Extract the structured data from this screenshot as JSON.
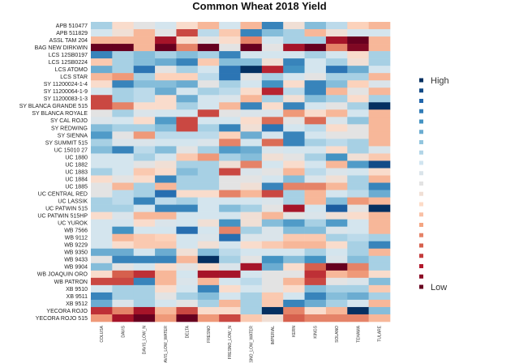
{
  "chart_data": {
    "type": "heatmap",
    "title": "Common Wheat 2018 Yield",
    "value_scale": "relative yield level, -3 = Low (dark red) to 3 = High (dark blue)",
    "columns": [
      "COLUSA",
      "DAVIS",
      "DAVIS_LOW_N",
      "DAVIS_LOW_WATER",
      "DELTA",
      "FRESNO",
      "FRESNO_LOW_N",
      "FRESNO_LOW_WATER",
      "IMPERIAL",
      "KERN",
      "KINGS",
      "SOLANO",
      "TEHAMA",
      "TULARE"
    ],
    "rows": [
      "APB 510477",
      "APB 511829",
      "ASSL TAM 204",
      "BAG NEW DIRKWIN",
      "LCS 12SB0197",
      "LCS 12SB0224",
      "LCS ATOMO",
      "LCS STAR",
      "SY 11200024-1-4",
      "SY 11200064-1-9",
      "SY 11200083-1-3",
      "SY BLANCA GRANDE 515",
      "SY BLANCA ROYALE",
      "SY CAL ROJO",
      "SY REDWING",
      "SY SIENNA",
      "SY SUMMIT 515",
      "UC 15010 27",
      "UC 1880",
      "UC 1882",
      "UC 1883",
      "UC 1884",
      "UC 1885",
      "UC CENTRAL RED",
      "UC LASSIK",
      "UC PATWIN 515",
      "UC PATWIN 515HP",
      "UC YUROK",
      "WB 7566",
      "WB 9112",
      "WB 9229",
      "WB 9350",
      "WB 9433",
      "WB 9904",
      "WB JOAQUIN ORO",
      "WB PATRON",
      "XB 9510",
      "XB 9511",
      "XB 9512",
      "YECORA ROJO",
      "YECORA ROJO 515"
    ],
    "values": [
      [
        1,
        -0.5,
        0,
        0.5,
        -0.5,
        -1,
        0.5,
        -1,
        2,
        -0.3,
        1.3,
        0.8,
        -0.7,
        -1
      ],
      [
        0.5,
        -0.3,
        -1,
        0,
        -2,
        0.8,
        -0.8,
        2,
        1.3,
        1,
        -1,
        -0.3,
        0.5,
        0.5
      ],
      [
        -1,
        -1,
        -1,
        -2.5,
        -0.5,
        0,
        -0.5,
        -1.5,
        0.5,
        1,
        1,
        -2.5,
        -3,
        -1
      ],
      [
        -3,
        -3,
        -1,
        -3,
        -1.5,
        -3,
        0,
        -3,
        0,
        -2.5,
        -3,
        -1.5,
        -2.8,
        -1
      ],
      [
        2,
        1,
        1.3,
        1,
        1.3,
        1,
        2,
        0.5,
        0.5,
        0.5,
        1,
        0.5,
        -0.5,
        1
      ],
      [
        -0.8,
        1,
        1.3,
        1.5,
        2,
        -0.8,
        1.3,
        1.3,
        -0.3,
        2,
        0.5,
        1,
        -0.3,
        1
      ],
      [
        1.5,
        1,
        2.2,
        0,
        1,
        0.5,
        2.2,
        3,
        -2.3,
        1.8,
        0.5,
        2.2,
        1.5,
        0.5
      ],
      [
        -1,
        -1.3,
        1,
        -0.7,
        -0.7,
        0.8,
        2.2,
        0,
        1,
        0.5,
        0,
        1,
        1,
        -1
      ],
      [
        -0.5,
        2,
        1.3,
        1.3,
        1.5,
        0,
        1,
        0.5,
        1.8,
        -0.5,
        2,
        1.3,
        -0.7,
        0.3
      ],
      [
        0.5,
        1,
        0.8,
        1.5,
        0.5,
        1,
        0.8,
        -0.5,
        -2.3,
        0.8,
        2,
        -1,
        0,
        -1
      ],
      [
        -2,
        1,
        0.8,
        -0.5,
        1.5,
        0.5,
        0.3,
        -1,
        1,
        -0.3,
        1.3,
        1,
        -0.5,
        1
      ],
      [
        -2,
        -1.5,
        -0.5,
        -0.5,
        1,
        0.5,
        -1,
        2,
        -0.5,
        2,
        0.5,
        0,
        1,
        3
      ],
      [
        0,
        1,
        0.3,
        0.5,
        0.5,
        -2,
        0,
        0.3,
        0.3,
        -1.3,
        -0.5,
        -1,
        0.5,
        -1
      ],
      [
        0.3,
        0.5,
        -0.5,
        1.7,
        -2,
        0.5,
        0.5,
        -0.5,
        -1.7,
        0,
        -1.7,
        0.3,
        1.2,
        -1
      ],
      [
        1.3,
        1,
        1,
        1.3,
        -2,
        1,
        2,
        -0.3,
        2.2,
        0.5,
        0.8,
        -0.5,
        0,
        -1
      ],
      [
        1.7,
        0,
        -1.3,
        0.8,
        0.8,
        0.8,
        -0.7,
        1.5,
        0.5,
        2,
        0.5,
        0,
        0,
        -1
      ],
      [
        1,
        0.3,
        0.3,
        0.5,
        0.5,
        0.3,
        -1.5,
        0.5,
        -1.7,
        2,
        1,
        0.8,
        1,
        -1
      ],
      [
        1.3,
        2,
        0.8,
        1.3,
        0,
        1,
        1.7,
        1.5,
        0.3,
        0.5,
        0.5,
        -0.5,
        1,
        0.3
      ],
      [
        0.5,
        0.5,
        1,
        0.5,
        -0.8,
        -1.3,
        1,
        1.3,
        -0.3,
        0,
        1,
        1.8,
        -0.3,
        -0.8
      ],
      [
        0.5,
        0.5,
        0,
        -0.3,
        1,
        1,
        -0.3,
        -1.5,
        0.5,
        -0.5,
        0.5,
        -1,
        1.7,
        2.7
      ],
      [
        1,
        0.5,
        -0.8,
        -0.5,
        1.3,
        1,
        -2,
        0.3,
        0,
        -1,
        0.8,
        0.3,
        0.5,
        -0.5
      ],
      [
        -0.5,
        0,
        -0.5,
        2,
        1,
        1,
        0,
        0,
        0.5,
        1.3,
        0.3,
        -0.3,
        1,
        -1
      ],
      [
        0,
        -1,
        1,
        -1,
        1,
        1,
        0,
        -0.3,
        2,
        -1.5,
        -1.5,
        -1,
        1,
        2
      ],
      [
        0,
        0.8,
        1,
        2.3,
        -0.5,
        -0.5,
        -1.5,
        -1,
        -2,
        1,
        -1,
        0.5,
        0.8,
        1.5
      ],
      [
        1,
        0.8,
        2,
        0.8,
        1,
        0.5,
        0.5,
        0.5,
        0.3,
        1,
        -1,
        1.3,
        -1.3,
        -1
      ],
      [
        1,
        1,
        0.5,
        2,
        2,
        0.5,
        1.3,
        1,
        0,
        -2.5,
        0.5,
        2.5,
        0,
        3
      ],
      [
        -0.5,
        0.3,
        -1,
        -1,
        0.5,
        0.5,
        0.5,
        -0.3,
        -1,
        0,
        0.3,
        -0.3,
        -0.5,
        -1
      ],
      [
        0.5,
        0.5,
        -0.5,
        0.3,
        0.5,
        -0.3,
        1.8,
        -0.3,
        1.3,
        1.7,
        1,
        1.7,
        0.5,
        -1
      ],
      [
        0.5,
        1.8,
        0.5,
        0.5,
        2.3,
        0.5,
        -1.5,
        1,
        0.3,
        1.3,
        1.3,
        0.3,
        0.5,
        -1
      ],
      [
        0.5,
        -1,
        -0.8,
        -0.7,
        0.5,
        0.3,
        2.3,
        0.3,
        0.3,
        -0.8,
        -0.8,
        1,
        0.8,
        1
      ],
      [
        0.5,
        -0.5,
        -0.8,
        -0.8,
        0.5,
        -0.3,
        0.5,
        -0.5,
        -0.8,
        -1,
        -1,
        -0.5,
        1,
        2
      ],
      [
        1.5,
        1.5,
        0.5,
        1.5,
        -0.3,
        1.3,
        0.8,
        0.5,
        0.5,
        0.5,
        1,
        0.5,
        1,
        -1
      ],
      [
        0,
        2,
        2,
        2,
        -1,
        3,
        1,
        0,
        1.8,
        1.3,
        1.8,
        0.3,
        1.3,
        1
      ],
      [
        1.3,
        0,
        0.5,
        -0.5,
        0,
        -0.5,
        0.3,
        -2.5,
        1.5,
        -0.5,
        -1.8,
        -3,
        -1.5,
        1
      ],
      [
        -0.5,
        -1.8,
        -2.2,
        -1,
        0.5,
        -2.5,
        -2.5,
        0.5,
        0,
        0,
        -2.2,
        -1,
        -1.3,
        -0.5
      ],
      [
        -2,
        -2,
        2,
        -1,
        0.3,
        -1,
        0.5,
        0.8,
        0,
        -1,
        -2,
        0,
        0.3,
        1.3
      ],
      [
        0.5,
        1,
        1,
        -0.5,
        0.5,
        2,
        -0.5,
        0.5,
        0,
        -0.5,
        1.3,
        1,
        1,
        -0.8
      ],
      [
        2,
        1,
        1,
        0,
        1,
        1.3,
        0.5,
        1,
        -0.8,
        0.5,
        2,
        1.3,
        1.5,
        1
      ],
      [
        1.5,
        0.3,
        1,
        0.5,
        0,
        1,
        -1,
        1,
        -0.8,
        2,
        1.5,
        1,
        0.5,
        -1
      ],
      [
        -2.2,
        -1.5,
        -2.5,
        -1,
        -2,
        -0.5,
        -0.5,
        1,
        3,
        -1.5,
        -0.5,
        -1,
        3,
        1.3
      ],
      [
        -1.3,
        -2.5,
        -3,
        -1.3,
        -3,
        -1.3,
        -2,
        -0.8,
        -0.3,
        -1.8,
        -1.5,
        -1.5,
        -1.5,
        -1
      ]
    ],
    "vlim": [
      -3,
      3
    ],
    "legend": {
      "placement": "right",
      "high_label": "High",
      "low_label": "Low",
      "steps": 21
    },
    "palette": [
      "#67001f",
      "#b2182b",
      "#d6604d",
      "#f4a582",
      "#fddbc7",
      "#e3e3e3",
      "#d1e5f0",
      "#92c5de",
      "#4393c3",
      "#2166ac",
      "#053061"
    ]
  }
}
